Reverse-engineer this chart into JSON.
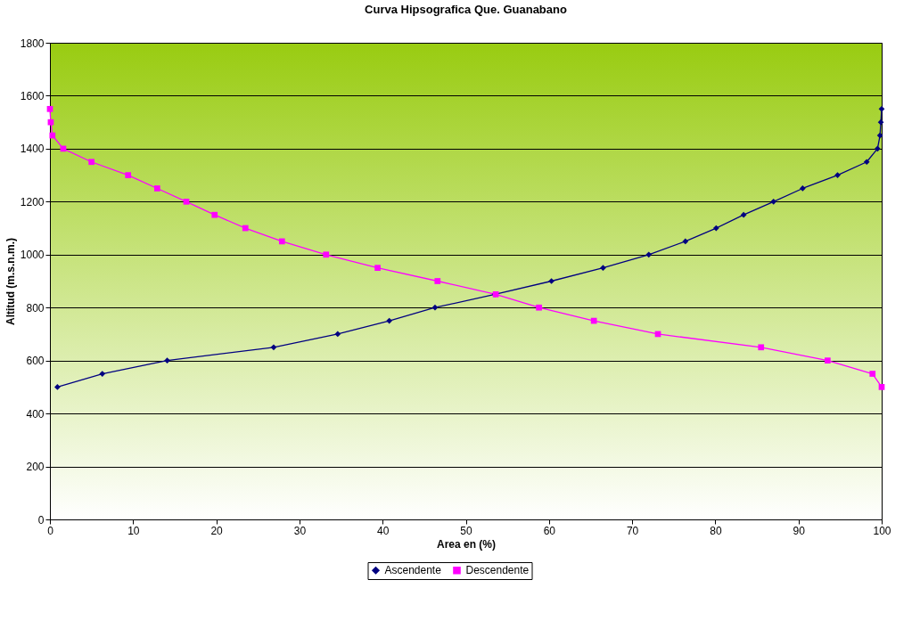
{
  "chart_data": {
    "type": "line",
    "title": "Curva Hipsografica Que. Guanabano",
    "xlabel": "Area en (%)",
    "ylabel": "Altitud (m.s.n.m.)",
    "xlim": [
      0,
      100
    ],
    "xticks": [
      0,
      10,
      20,
      30,
      40,
      50,
      60,
      70,
      80,
      90,
      100
    ],
    "ylim": [
      0,
      1800
    ],
    "yticks": [
      0,
      200,
      400,
      600,
      800,
      1000,
      1200,
      1400,
      1600,
      1800
    ],
    "grid": "y",
    "legend": "bottom",
    "series": [
      {
        "name": "Ascendente",
        "color": "#000080",
        "marker": "diamond",
        "x": [
          0.9,
          6.3,
          14.1,
          26.9,
          34.6,
          40.8,
          46.3,
          53.5,
          60.3,
          66.5,
          72.0,
          76.4,
          80.1,
          83.4,
          87.0,
          90.5,
          94.7,
          98.2,
          99.5,
          99.8,
          99.9,
          100
        ],
        "values": [
          500,
          550,
          600,
          650,
          700,
          750,
          800,
          850,
          900,
          950,
          1000,
          1050,
          1100,
          1150,
          1200,
          1250,
          1300,
          1350,
          1400,
          1450,
          1500,
          1550
        ]
      },
      {
        "name": "Descendente",
        "color": "#ff00ff",
        "marker": "square",
        "x": [
          100,
          98.9,
          93.5,
          85.5,
          73.1,
          65.4,
          58.8,
          53.6,
          46.6,
          39.4,
          33.2,
          27.9,
          23.5,
          19.8,
          16.4,
          12.9,
          9.4,
          5.0,
          1.6,
          0.3,
          0.1,
          0
        ],
        "values": [
          500,
          550,
          600,
          650,
          700,
          750,
          800,
          850,
          900,
          950,
          1000,
          1050,
          1100,
          1150,
          1200,
          1250,
          1300,
          1350,
          1400,
          1450,
          1500,
          1550
        ]
      }
    ]
  }
}
